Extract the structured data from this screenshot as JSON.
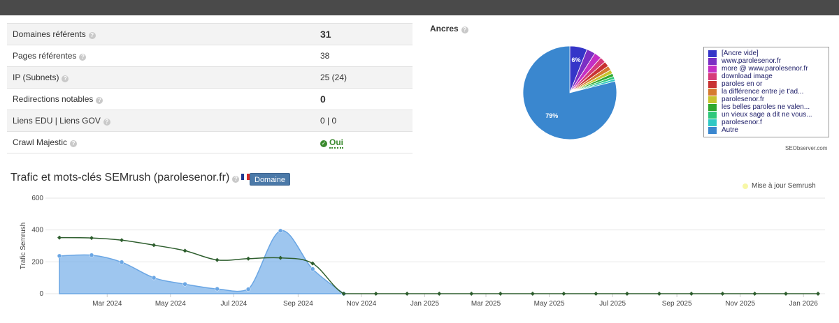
{
  "stats": [
    {
      "label": "Domaines référents",
      "value": "31",
      "bold": true
    },
    {
      "label": "Pages référentes",
      "value": "38",
      "bold": false
    },
    {
      "label": "IP (Subnets)",
      "value": "25 (24)",
      "bold": false
    },
    {
      "label": "Redirections notables",
      "value": "0",
      "bold": true
    },
    {
      "label": "Liens EDU | Liens GOV",
      "value": "0 | 0",
      "bold": false
    },
    {
      "label": "Crawl Majestic",
      "value": "Oui",
      "bold": false
    }
  ],
  "help_glyph": "?",
  "check_glyph": "✓",
  "anchors": {
    "title": "Ancres",
    "credit": "SEObserver.com",
    "slices": [
      {
        "label": "[Ancre vide]",
        "value": 6,
        "color": "#3535c8",
        "show": "6%"
      },
      {
        "label": "www.parolesenor.fr",
        "value": 3,
        "color": "#7b2fc4",
        "show": ""
      },
      {
        "label": "more @ www.parolesenor.fr",
        "value": 2.5,
        "color": "#c42fc4",
        "show": ""
      },
      {
        "label": "download image",
        "value": 2,
        "color": "#d63a7a",
        "show": ""
      },
      {
        "label": "paroles en or",
        "value": 1.8,
        "color": "#c83232",
        "show": ""
      },
      {
        "label": "la différence entre je t'ad...",
        "value": 1.6,
        "color": "#d67b2f",
        "show": ""
      },
      {
        "label": "parolesenor.fr",
        "value": 1.3,
        "color": "#c8c42f",
        "show": ""
      },
      {
        "label": "les belles paroles ne valen...",
        "value": 1.1,
        "color": "#2fa82f",
        "show": ""
      },
      {
        "label": "un vieux sage a dit ne vous...",
        "value": 0.9,
        "color": "#2fc87b",
        "show": ""
      },
      {
        "label": "parolesenor.f",
        "value": 0.8,
        "color": "#2fc8c4",
        "show": ""
      },
      {
        "label": "Autre",
        "value": 79,
        "color": "#3a87cf",
        "show": "79%"
      }
    ]
  },
  "semrush": {
    "title": "Trafic et mots-clés SEMrush (parolesenor.fr)",
    "badge": "Domaine",
    "update_legend": "Mise à jour Semrush"
  },
  "chart_data": {
    "type": "area",
    "ylabel": "Trafic Semrush",
    "ylim": [
      0,
      600
    ],
    "yticks": [
      0,
      200,
      400,
      600
    ],
    "x": [
      "2024-01",
      "2024-02",
      "2024-03",
      "2024-04",
      "2024-05",
      "2024-06",
      "2024-07",
      "2024-08",
      "2024-09",
      "2024-10",
      "2024-11",
      "2024-12",
      "2025-01",
      "2025-02",
      "2025-03",
      "2025-04",
      "2025-05",
      "2025-06",
      "2025-07",
      "2025-08",
      "2025-09",
      "2025-10",
      "2025-11",
      "2025-12",
      "2026-01"
    ],
    "xtick_labels": [
      "Mar 2024",
      "May 2024",
      "Jul 2024",
      "Sep 2024",
      "Nov 2024",
      "Jan 2025",
      "Mar 2025",
      "May 2025",
      "Jul 2025",
      "Sep 2025",
      "Nov 2025",
      "Jan 2026"
    ],
    "series": [
      {
        "type": "area",
        "color": "#7db3ea",
        "points": [
          [
            "2024-01-15",
            237
          ],
          [
            "2024-02-15",
            242
          ],
          [
            "2024-03-15",
            198
          ],
          [
            "2024-04-15",
            100
          ],
          [
            "2024-05-15",
            60
          ],
          [
            "2024-06-15",
            30
          ],
          [
            "2024-07-15",
            28
          ],
          [
            "2024-08-15",
            395
          ],
          [
            "2024-09-15",
            155
          ],
          [
            "2024-10-15",
            0
          ]
        ]
      },
      {
        "type": "line",
        "color": "#2e5e2e",
        "points": [
          [
            "2024-01-15",
            352
          ],
          [
            "2024-02-15",
            350
          ],
          [
            "2024-03-15",
            336
          ],
          [
            "2024-04-15",
            305
          ],
          [
            "2024-05-15",
            270
          ],
          [
            "2024-06-15",
            212
          ],
          [
            "2024-07-15",
            220
          ],
          [
            "2024-08-15",
            225
          ],
          [
            "2024-09-15",
            190
          ],
          [
            "2024-10-15",
            0
          ],
          [
            "2024-11-15",
            0
          ],
          [
            "2024-12-15",
            0
          ],
          [
            "2025-01-15",
            0
          ],
          [
            "2025-02-15",
            0
          ],
          [
            "2025-03-15",
            0
          ],
          [
            "2025-04-15",
            0
          ],
          [
            "2025-05-15",
            0
          ],
          [
            "2025-06-15",
            0
          ],
          [
            "2025-07-15",
            0
          ],
          [
            "2025-08-15",
            0
          ],
          [
            "2025-09-15",
            0
          ],
          [
            "2025-10-15",
            0
          ],
          [
            "2025-11-15",
            0
          ],
          [
            "2025-12-15",
            0
          ],
          [
            "2026-01-15",
            0
          ]
        ]
      }
    ]
  }
}
